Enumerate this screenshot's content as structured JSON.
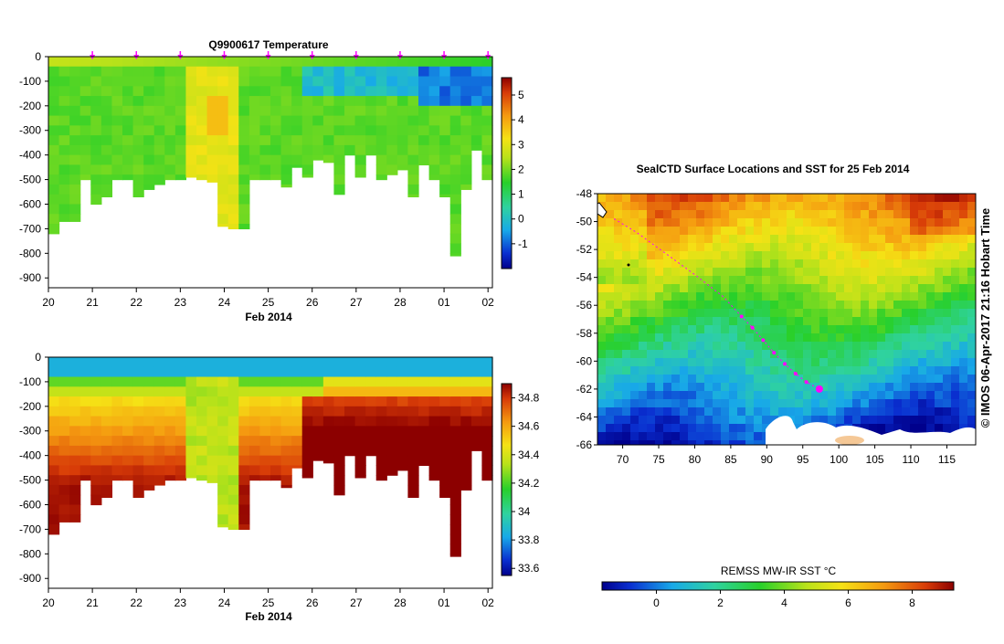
{
  "chart_data": [
    {
      "type": "heatmap",
      "title": "Q9900617  Temperature",
      "xlabel": "Feb 2014",
      "x_tick_labels": [
        "20",
        "21",
        "22",
        "23",
        "24",
        "25",
        "26",
        "27",
        "28",
        "01",
        "02"
      ],
      "y_tick_labels": [
        "0",
        "-100",
        "-200",
        "-300",
        "-400",
        "-500",
        "-600",
        "-700",
        "-800",
        "-900"
      ],
      "ylim": [
        -940,
        0
      ],
      "xlim_days": [
        0,
        10.1
      ],
      "colorbar_labels": [
        "5",
        "4",
        "3",
        "2",
        "1",
        "0",
        "-1"
      ],
      "colorbar_range": [
        -2,
        5.7
      ],
      "profile_depths_m": [
        -720,
        -670,
        -670,
        -500,
        -600,
        -570,
        -500,
        -500,
        -570,
        -540,
        -520,
        -500,
        -500,
        -490,
        -500,
        -510,
        -690,
        -700,
        -700,
        -500,
        -500,
        -500,
        -530,
        -450,
        -490,
        -420,
        -430,
        -560,
        -400,
        -490,
        -400,
        -500,
        -480,
        -460,
        -570,
        -440,
        -500,
        -570,
        -810,
        -540,
        -380,
        -500
      ],
      "marker_days": [
        1,
        2,
        3,
        4,
        5,
        6,
        7,
        8,
        9,
        10
      ],
      "marker_color": "#ff00ff"
    },
    {
      "type": "heatmap",
      "title": "",
      "xlabel": "Feb 2014",
      "x_tick_labels": [
        "20",
        "21",
        "22",
        "23",
        "24",
        "25",
        "26",
        "27",
        "28",
        "01",
        "02"
      ],
      "y_tick_labels": [
        "0",
        "-100",
        "-200",
        "-300",
        "-400",
        "-500",
        "-600",
        "-700",
        "-800",
        "-900"
      ],
      "ylim": [
        -940,
        0
      ],
      "colorbar_labels": [
        "34.8",
        "34.6",
        "34.4",
        "34.2",
        "34",
        "33.8",
        "33.6"
      ],
      "colorbar_range": [
        33.55,
        34.9
      ]
    },
    {
      "type": "heatmap",
      "title": "SealCTD Surface Locations and SST for 25 Feb 2014",
      "x_tick_labels": [
        "70",
        "75",
        "80",
        "85",
        "90",
        "95",
        "100",
        "105",
        "110",
        "115"
      ],
      "y_tick_labels": [
        "-48",
        "-50",
        "-52",
        "-54",
        "-56",
        "-58",
        "-60",
        "-62",
        "-64",
        "-66"
      ],
      "xlim": [
        66.5,
        119
      ],
      "ylim": [
        -66,
        -48
      ],
      "colorbar_title": "REMSS MW-IR SST °C",
      "colorbar_labels": [
        "0",
        "2",
        "4",
        "6",
        "8"
      ],
      "colorbar_range": [
        -1.7,
        9.3
      ],
      "track": {
        "lon": [
          68.8,
          72,
          76,
          80,
          84,
          86.5,
          88,
          89.5,
          91,
          92.5,
          94,
          95.5,
          97.3
        ],
        "lat": [
          -49.8,
          -50.8,
          -52.3,
          -53.8,
          -55.4,
          -56.8,
          -57.6,
          -58.5,
          -59.4,
          -60.2,
          -60.9,
          -61.5,
          -62.0
        ],
        "color": "#ff00ff"
      },
      "side_label": "© IMOS 06-Apr-2017 21:16 Hobart Time"
    }
  ]
}
